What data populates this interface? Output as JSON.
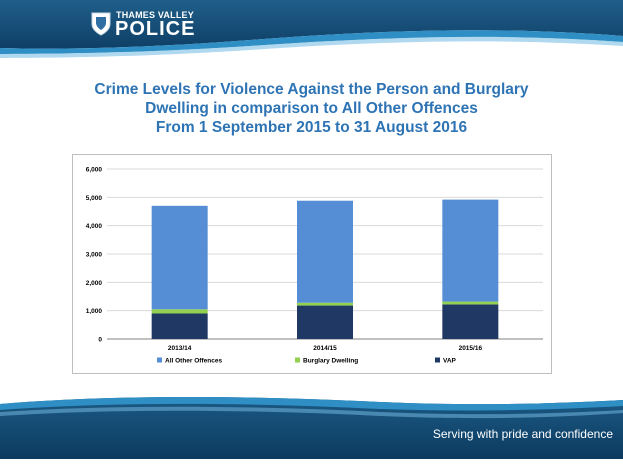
{
  "header": {
    "logo_top": "THAMES VALLEY",
    "logo_main": "POLICE"
  },
  "title": {
    "line1": "Crime Levels for Violence Against the Person and Burglary",
    "line2": "Dwelling in comparison to All Other Offences",
    "line3": "From 1 September 2015 to 31 August 2016"
  },
  "footer": {
    "tagline": "Serving with pride and confidence"
  },
  "chart_data": {
    "type": "bar",
    "stacked": true,
    "categories": [
      "2013/14",
      "2014/15",
      "2015/16"
    ],
    "series": [
      {
        "name": "VAP",
        "values": [
          900,
          1180,
          1220
        ],
        "color": "#1f3864"
      },
      {
        "name": "Burglary Dwelling",
        "values": [
          150,
          100,
          100
        ],
        "color": "#92d050"
      },
      {
        "name": "All Other Offences",
        "values": [
          3650,
          3600,
          3600
        ],
        "color": "#558ed5"
      }
    ],
    "legend_order": [
      "All Other Offences",
      "Burglary Dwelling",
      "VAP"
    ],
    "ylim": [
      0,
      6000
    ],
    "yticks": [
      "0",
      "1,000",
      "2,000",
      "3,000",
      "4,000",
      "5,000",
      "6,000"
    ],
    "grid": true,
    "legend_position": "bottom"
  }
}
